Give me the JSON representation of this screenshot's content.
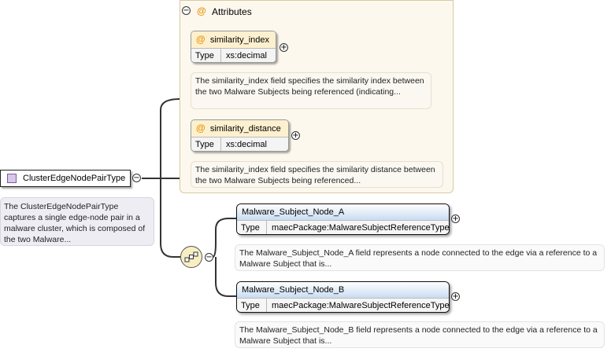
{
  "attributes_group": {
    "title": "Attributes",
    "collapse_symbol": "−",
    "at_symbol": "@"
  },
  "attributes": [
    {
      "name": "similarity_index",
      "type_label": "Type",
      "type": "xs:decimal",
      "description": "The similarity_index field specifies the similarity index between the two Malware Subjects being referenced (indicating...",
      "expand_symbol": "+"
    },
    {
      "name": "similarity_distance",
      "type_label": "Type",
      "type": "xs:decimal",
      "description": "The similarity_index field specifies the similarity distance between the two Malware Subjects being referenced...",
      "expand_symbol": "+"
    }
  ],
  "complex_type": {
    "name": "ClusterEdgeNodePairType",
    "description": "The ClusterEdgeNodePairType captures a single edge-node pair in a malware cluster, which is composed of the two Malware...",
    "collapse_symbol": "−"
  },
  "sequence": {
    "collapse_symbol": "−",
    "icon": "sequence-compositor-icon"
  },
  "elements": [
    {
      "name": "Malware_Subject_Node_A",
      "type_label": "Type",
      "type": "maecPackage:MalwareSubjectReferenceType",
      "description": "The Malware_Subject_Node_A field represents a node connected to the edge via a reference to a Malware Subject that is...",
      "expand_symbol": "+"
    },
    {
      "name": "Malware_Subject_Node_B",
      "type_label": "Type",
      "type": "maecPackage:MalwareSubjectReferenceType",
      "description": "The Malware_Subject_Node_B field represents a node connected to the edge via a reference to a Malware Subject that is...",
      "expand_symbol": "+"
    }
  ],
  "colors": {
    "attribute_header": "#fdf0cf",
    "element_header": "#c9dcf2",
    "type_icon": "#d8c7ea",
    "sequence": "#f7efc3"
  }
}
